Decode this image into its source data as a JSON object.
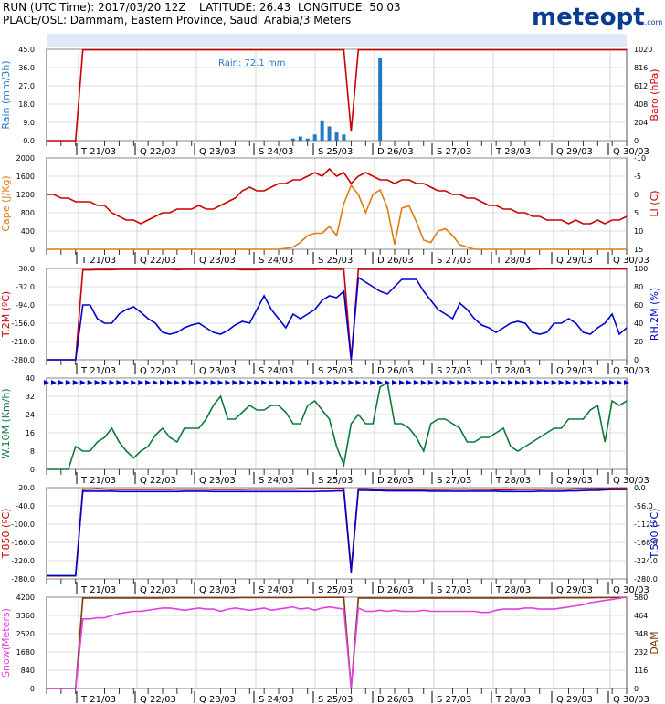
{
  "header": {
    "run": "RUN (UTC Time): 2017/03/20 12Z",
    "latitude": "LATITUDE: 26.43",
    "longitude": "LONGITUDE: 50.03",
    "place": "PLACE/OSL: Dammam, Eastern Province, Saudi Arabia/3 Meters",
    "logo": "meteopt",
    "logo_suffix": ".com"
  },
  "colors": {
    "red": "#cc0000",
    "blue": "#0000cc",
    "lightblue": "#1f78c8",
    "orange": "#e07a10",
    "green": "#0a7a3a",
    "magenta": "#e040e0",
    "brown": "#7a3a0a",
    "grid": "#bbbbbb"
  },
  "x_ticks": [
    "T 21/03",
    "Q 22/03",
    "Q 23/03",
    "S 24/03",
    "S 25/03",
    "D 26/03",
    "S 27/03",
    "T 28/03",
    "Q 29/03",
    "Q 30/03"
  ],
  "chart_data": [
    {
      "type": "bar",
      "ylabel": "Rain (mm/3h)",
      "ylim": [
        0,
        45
      ],
      "yticks": [
        "45.0",
        "36.0",
        "27.0",
        "18.0",
        "9.0",
        "0.0"
      ],
      "y2label": "Baro (hPa)",
      "y2ticks": [
        "1020",
        "816",
        "612",
        "408",
        "204",
        "0"
      ],
      "annotation": "Rain: 72.1 mm",
      "rain_series": {
        "color": "lightblue",
        "x": [
          34,
          35,
          36,
          37,
          38,
          39,
          40,
          41,
          46
        ],
        "values": [
          1,
          2,
          1,
          3,
          10,
          7,
          4,
          3,
          41
        ]
      },
      "baro_series": {
        "color": "red",
        "ylim": [
          0,
          1020
        ],
        "values": [
          0,
          0,
          0,
          0,
          0,
          1014,
          1014,
          1014,
          1014,
          1014,
          1014,
          1014,
          1014,
          1014,
          1014,
          1014,
          1014,
          1014,
          1014,
          1014,
          1014,
          1014,
          1014,
          1014,
          1014,
          1014,
          1014,
          1014,
          1014,
          1014,
          1014,
          1014,
          1014,
          1014,
          1014,
          1014,
          1014,
          1014,
          1014,
          1014,
          1014,
          1014,
          100,
          1014,
          1014,
          1014,
          1014,
          1014,
          1014,
          1014,
          1014,
          1014,
          1014,
          1014,
          1014,
          1014,
          1014,
          1014,
          1014,
          1014,
          1014,
          1014,
          1014,
          1014,
          1014,
          1014,
          1014,
          1014,
          1014,
          1014,
          1014,
          1014,
          1014,
          1014,
          1014,
          1014,
          1014,
          1014,
          1014,
          1014,
          1014
        ]
      }
    },
    {
      "type": "line",
      "ylabel": "Cape (J/Kg)",
      "ylim": [
        0,
        2000
      ],
      "yticks": [
        "2000",
        "1600",
        "1200",
        "800",
        "400",
        "0"
      ],
      "y2label": "LI (C)",
      "y2ticks": [
        "-10",
        "-5",
        "0",
        "5",
        "10",
        "15"
      ],
      "series": [
        {
          "color": "red",
          "role": "LI",
          "ylim": [
            15,
            -10
          ],
          "values": [
            0,
            0,
            1,
            1,
            2,
            2,
            2,
            3,
            3,
            5,
            6,
            7,
            7,
            8,
            7,
            6,
            5,
            5,
            4,
            4,
            4,
            3,
            4,
            4,
            3,
            2,
            1,
            -1,
            -2,
            -1,
            -1,
            -2,
            -3,
            -3,
            -4,
            -4,
            -5,
            -6,
            -5,
            -7,
            -5,
            -6,
            -3,
            -5,
            -6,
            -5,
            -4,
            -4,
            -3,
            -4,
            -4,
            -3,
            -3,
            -2,
            -1,
            -1,
            0,
            0,
            1,
            1,
            2,
            3,
            3,
            4,
            4,
            5,
            5,
            6,
            6,
            7,
            7,
            7,
            8,
            7,
            8,
            8,
            7,
            8,
            7,
            7,
            6
          ]
        },
        {
          "color": "orange",
          "role": "Cape",
          "ylim": [
            0,
            2000
          ],
          "values": [
            0,
            0,
            0,
            0,
            0,
            0,
            0,
            0,
            0,
            0,
            0,
            0,
            0,
            0,
            0,
            0,
            0,
            0,
            0,
            0,
            0,
            0,
            0,
            0,
            0,
            0,
            0,
            0,
            0,
            0,
            0,
            0,
            0,
            20,
            50,
            150,
            300,
            350,
            350,
            500,
            300,
            1000,
            1400,
            1200,
            800,
            1200,
            1300,
            900,
            100,
            900,
            950,
            600,
            200,
            150,
            400,
            450,
            300,
            100,
            50,
            0,
            0,
            0,
            0,
            0,
            0,
            0,
            0,
            0,
            0,
            0,
            0,
            0,
            0,
            0,
            0,
            0,
            0,
            0,
            0,
            0,
            0
          ]
        }
      ]
    },
    {
      "type": "line",
      "ylabel": "T.2M (ºC)",
      "ylim": [
        -280,
        30
      ],
      "yticks": [
        "30.0",
        "-32.0",
        "-94.0",
        "-156.0",
        "-218.0",
        "-280.0"
      ],
      "y2label": "RH.2M (%)",
      "y2ticks": [
        "100",
        "80",
        "60",
        "40",
        "20",
        "0"
      ],
      "series": [
        {
          "color": "red",
          "role": "T.2M",
          "ylim": [
            -280,
            30
          ],
          "values": [
            -280,
            -280,
            -280,
            -280,
            -280,
            25,
            25,
            26,
            26,
            26,
            27,
            27,
            27,
            27,
            27,
            27,
            27,
            27,
            26,
            27,
            27,
            27,
            27,
            27,
            27,
            27,
            27,
            26,
            26,
            26,
            27,
            27,
            27,
            27,
            27,
            27,
            27,
            27,
            28,
            27,
            27,
            27,
            -280,
            27,
            27,
            27,
            27,
            27,
            27,
            27,
            27,
            27,
            27,
            27,
            27,
            27,
            27,
            27,
            27,
            27,
            27,
            27,
            27,
            27,
            27,
            27,
            27,
            27,
            28,
            28,
            28,
            28,
            28,
            28,
            28,
            28,
            28,
            28,
            28,
            28,
            28
          ]
        },
        {
          "color": "blue",
          "role": "RH.2M",
          "ylim": [
            0,
            100
          ],
          "values": [
            0,
            0,
            0,
            0,
            0,
            60,
            60,
            45,
            40,
            40,
            50,
            55,
            58,
            52,
            45,
            40,
            30,
            28,
            30,
            35,
            38,
            40,
            35,
            30,
            28,
            32,
            38,
            42,
            40,
            55,
            70,
            55,
            45,
            35,
            50,
            45,
            50,
            55,
            65,
            70,
            68,
            75,
            0,
            90,
            85,
            80,
            75,
            72,
            80,
            88,
            88,
            88,
            75,
            65,
            55,
            50,
            45,
            62,
            55,
            45,
            38,
            35,
            30,
            35,
            40,
            42,
            40,
            30,
            28,
            30,
            40,
            40,
            45,
            40,
            30,
            28,
            35,
            40,
            50,
            28,
            35
          ]
        }
      ]
    },
    {
      "type": "line",
      "ylabel": "W.10M (Km/h)",
      "ylim": [
        0,
        40
      ],
      "yticks": [
        "40",
        "32",
        "24",
        "16",
        "8",
        "0"
      ],
      "series": [
        {
          "color": "green",
          "role": "W.10M",
          "ylim": [
            0,
            40
          ],
          "values": [
            0,
            0,
            0,
            0,
            10,
            8,
            8,
            12,
            14,
            18,
            12,
            8,
            5,
            8,
            10,
            15,
            18,
            14,
            12,
            18,
            18,
            18,
            22,
            28,
            32,
            22,
            22,
            25,
            28,
            26,
            26,
            28,
            28,
            25,
            20,
            20,
            28,
            30,
            26,
            22,
            10,
            2,
            20,
            24,
            20,
            20,
            36,
            38,
            20,
            20,
            18,
            14,
            8,
            20,
            22,
            22,
            20,
            18,
            12,
            12,
            14,
            14,
            16,
            18,
            10,
            8,
            10,
            12,
            14,
            16,
            18,
            18,
            22,
            22,
            22,
            26,
            28,
            12,
            30,
            28,
            30
          ]
        }
      ]
    },
    {
      "type": "line",
      "ylabel": "T.850 (ºC)",
      "ylim": [
        -280,
        20
      ],
      "yticks": [
        "20.0",
        "-40.0",
        "-100.0",
        "-160.0",
        "-220.0",
        "-280.0"
      ],
      "y2label": "T.500 (ºC)",
      "y2ticks": [
        "0.0",
        "-56.0",
        "-112.0",
        "-168.0",
        "-224.0",
        "-280.0"
      ],
      "series": [
        {
          "color": "red",
          "role": "T.850",
          "ylim": [
            -280,
            20
          ],
          "values": [
            -270,
            -270,
            -270,
            -270,
            -270,
            15,
            15,
            16,
            15,
            14,
            14,
            14,
            14,
            14,
            14,
            14,
            14,
            14,
            15,
            15,
            15,
            15,
            15,
            14,
            14,
            14,
            14,
            14,
            15,
            15,
            15,
            15,
            15,
            15,
            15,
            16,
            16,
            16,
            17,
            17,
            17,
            18,
            -250,
            16,
            16,
            15,
            14,
            14,
            14,
            14,
            14,
            14,
            14,
            14,
            14,
            14,
            15,
            15,
            15,
            14,
            14,
            14,
            13,
            13,
            13,
            14,
            14,
            14,
            14,
            15,
            15,
            15,
            15,
            16,
            16,
            16,
            17,
            17,
            18,
            18,
            18
          ]
        },
        {
          "color": "blue",
          "role": "T.500",
          "ylim": [
            -280,
            0
          ],
          "values": [
            -270,
            -270,
            -270,
            -270,
            -270,
            -11,
            -11,
            -11,
            -11,
            -11,
            -12,
            -12,
            -12,
            -12,
            -12,
            -12,
            -12,
            -12,
            -12,
            -11,
            -11,
            -11,
            -11,
            -12,
            -12,
            -12,
            -12,
            -12,
            -12,
            -12,
            -12,
            -12,
            -12,
            -12,
            -12,
            -12,
            -12,
            -12,
            -11,
            -11,
            -10,
            -10,
            -260,
            -8,
            -8,
            -9,
            -9,
            -10,
            -10,
            -10,
            -10,
            -10,
            -10,
            -11,
            -11,
            -11,
            -11,
            -11,
            -11,
            -11,
            -11,
            -11,
            -11,
            -12,
            -12,
            -12,
            -12,
            -12,
            -11,
            -11,
            -11,
            -11,
            -10,
            -10,
            -9,
            -8,
            -8,
            -7,
            -6,
            -6,
            -6
          ]
        }
      ]
    },
    {
      "type": "line",
      "ylabel": "Snow(Meters)",
      "ylim": [
        0,
        4200
      ],
      "yticks": [
        "4200",
        "3360",
        "2520",
        "1680",
        "840",
        "0"
      ],
      "y2label": "DAM",
      "y2ticks": [
        "580",
        "464",
        "348",
        "232",
        "116",
        "0"
      ],
      "series": [
        {
          "color": "brown",
          "role": "DAM",
          "ylim": [
            0,
            580
          ],
          "values": [
            0,
            0,
            0,
            0,
            0,
            575,
            575,
            575,
            575,
            575,
            575,
            575,
            575,
            575,
            575,
            575,
            575,
            576,
            576,
            576,
            576,
            576,
            576,
            576,
            576,
            576,
            576,
            577,
            577,
            577,
            577,
            577,
            577,
            577,
            577,
            578,
            578,
            578,
            578,
            579,
            579,
            579,
            0,
            575,
            575,
            575,
            575,
            575,
            575,
            575,
            575,
            575,
            575,
            575,
            575,
            575,
            575,
            575,
            575,
            575,
            575,
            575,
            575,
            575,
            575,
            575,
            575,
            575,
            575,
            575,
            575,
            576,
            576,
            576,
            576,
            576,
            577,
            577,
            578,
            578,
            579
          ]
        },
        {
          "color": "magenta",
          "role": "Snow",
          "ylim": [
            0,
            4200
          ],
          "values": [
            0,
            0,
            0,
            0,
            0,
            3200,
            3200,
            3250,
            3250,
            3350,
            3450,
            3500,
            3550,
            3550,
            3600,
            3650,
            3700,
            3700,
            3650,
            3600,
            3650,
            3700,
            3650,
            3650,
            3550,
            3650,
            3700,
            3650,
            3600,
            3650,
            3700,
            3600,
            3650,
            3700,
            3750,
            3650,
            3700,
            3600,
            3700,
            3750,
            3700,
            3650,
            0,
            3700,
            3550,
            3550,
            3600,
            3550,
            3600,
            3550,
            3550,
            3550,
            3600,
            3550,
            3550,
            3550,
            3550,
            3550,
            3550,
            3550,
            3500,
            3500,
            3600,
            3650,
            3650,
            3650,
            3700,
            3700,
            3650,
            3650,
            3650,
            3700,
            3750,
            3800,
            3850,
            3950,
            4000,
            4050,
            4100,
            4150,
            4200
          ]
        }
      ]
    }
  ]
}
